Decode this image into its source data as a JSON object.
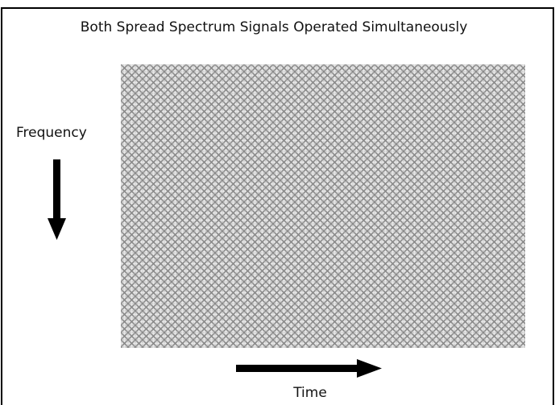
{
  "title": "Both Spread Spectrum Signals Operated Simultaneously",
  "axes": {
    "vertical": "Frequency",
    "horizontal": "Time"
  }
}
